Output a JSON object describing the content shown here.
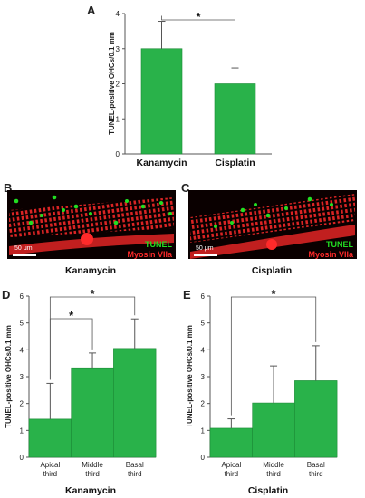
{
  "colors": {
    "bar": "#29b24a",
    "bar_stroke": "#1c8a36",
    "axis": "#555555",
    "tunel": "#22dd22",
    "myosin": "#ff2a2a",
    "micro_bg": "#0a0000"
  },
  "panels": {
    "A": {
      "label": "A"
    },
    "B": {
      "label": "B",
      "caption": "Kanamycin",
      "scale": "50 μm",
      "stain1": "TUNEL",
      "stain2": "Myosin VIIa"
    },
    "C": {
      "label": "C",
      "caption": "Cisplatin",
      "scale": "50 μm",
      "stain1": "TUNEL",
      "stain2": "Myosin VIIa"
    },
    "D": {
      "label": "D",
      "caption": "Kanamycin"
    },
    "E": {
      "label": "E",
      "caption": "Cisplatin"
    }
  },
  "chart_data": [
    {
      "id": "A",
      "type": "bar",
      "categories": [
        "Kanamycin",
        "Cisplatin"
      ],
      "values": [
        3.0,
        2.0
      ],
      "errors": [
        0.78,
        0.45
      ],
      "ylabel": "TUNEL-positive OHCs/0.1 mm",
      "ylim": [
        0,
        4
      ],
      "yticks": [
        0,
        1,
        2,
        3,
        4
      ],
      "significance": [
        {
          "from": 0,
          "to": 1,
          "mark": "*"
        }
      ]
    },
    {
      "id": "D",
      "type": "bar",
      "categories": [
        [
          "Apical",
          "third"
        ],
        [
          "Middle",
          "third"
        ],
        [
          "Basal",
          "third"
        ]
      ],
      "values": [
        1.42,
        3.33,
        4.05
      ],
      "errors": [
        1.33,
        0.55,
        1.1
      ],
      "ylabel": "TUNEL-positive OHCs/0.1 mm",
      "ylim": [
        0,
        6
      ],
      "yticks": [
        0,
        1,
        2,
        3,
        4,
        5,
        6
      ],
      "significance": [
        {
          "from": 0,
          "to": 1,
          "mark": "*"
        },
        {
          "from": 0,
          "to": 2,
          "mark": "*"
        }
      ]
    },
    {
      "id": "E",
      "type": "bar",
      "categories": [
        [
          "Apical",
          "third"
        ],
        [
          "Middle",
          "third"
        ],
        [
          "Basal",
          "third"
        ]
      ],
      "values": [
        1.08,
        2.02,
        2.85
      ],
      "errors": [
        0.35,
        1.38,
        1.3
      ],
      "ylabel": "TUNEL-positive OHCs/0.1 mm",
      "ylim": [
        0,
        6
      ],
      "yticks": [
        0,
        1,
        2,
        3,
        4,
        5,
        6
      ],
      "significance": [
        {
          "from": 0,
          "to": 2,
          "mark": "*"
        }
      ]
    }
  ]
}
